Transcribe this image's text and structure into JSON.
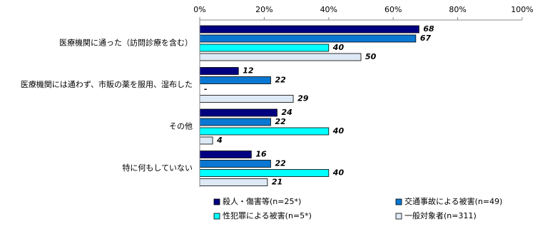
{
  "chart_data": {
    "type": "barh",
    "categories": [
      "医療機関に通った（訪問診療を含む）",
      "医療機関には通わず、市販の薬を服用、湿布した",
      "その他",
      "特に何もしていない"
    ],
    "series": [
      {
        "name": "殺人・傷害等(n=25*)",
        "color": "#000080",
        "values": [
          68,
          12,
          24,
          16
        ]
      },
      {
        "name": "交通事故による被害(n=49)",
        "color": "#0a78d2",
        "values": [
          67,
          22,
          22,
          22
        ]
      },
      {
        "name": "性犯罪による被害(n=5*)",
        "color": "#00ffff",
        "values": [
          40,
          null,
          40,
          40
        ],
        "value_labels": [
          "40",
          "-",
          "40",
          "40"
        ]
      },
      {
        "name": "一般対象者(n=311)",
        "color": "#dde9f5",
        "values": [
          50,
          29,
          4,
          21
        ]
      }
    ],
    "xlim": [
      0,
      100
    ],
    "xticks": [
      {
        "value": 0,
        "label": "0%"
      },
      {
        "value": 20,
        "label": "20%"
      },
      {
        "value": 40,
        "label": "40%"
      },
      {
        "value": 60,
        "label": "60%"
      },
      {
        "value": 80,
        "label": "80%"
      },
      {
        "value": 100,
        "label": "100%"
      }
    ]
  }
}
